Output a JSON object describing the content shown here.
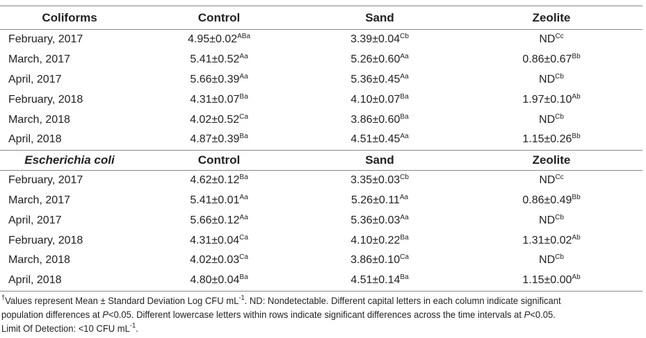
{
  "sections": [
    {
      "header": [
        "Coliforms",
        "Control",
        "Sand",
        "Zeolite"
      ],
      "rows": [
        {
          "label": "February, 2017",
          "cells": [
            {
              "value": "4.95±0.02",
              "sup": "ABa"
            },
            {
              "value": "3.39±0.04",
              "sup": "Cb"
            },
            {
              "value": "ND",
              "sup": "Cc"
            }
          ]
        },
        {
          "label": "March, 2017",
          "cells": [
            {
              "value": "5.41±0.52",
              "sup": "Aa"
            },
            {
              "value": "5.26±0.60",
              "sup": "Aa"
            },
            {
              "value": "0.86±0.67",
              "sup": "Bb"
            }
          ]
        },
        {
          "label": "April, 2017",
          "cells": [
            {
              "value": "5.66±0.39",
              "sup": "Aa"
            },
            {
              "value": "5.36±0.45",
              "sup": "Aa"
            },
            {
              "value": "ND",
              "sup": "Cb"
            }
          ]
        },
        {
          "label": "February, 2018",
          "cells": [
            {
              "value": "4.31±0.07",
              "sup": "Ba"
            },
            {
              "value": "4.10±0.07",
              "sup": "Ba"
            },
            {
              "value": "1.97±0.10",
              "sup": "Ab"
            }
          ]
        },
        {
          "label": "March, 2018",
          "cells": [
            {
              "value": "4.02±0.52",
              "sup": "Ca"
            },
            {
              "value": "3.86±0.60",
              "sup": "Ba"
            },
            {
              "value": "ND",
              "sup": "Cb"
            }
          ]
        },
        {
          "label": "April, 2018",
          "cells": [
            {
              "value": "4.87±0.39",
              "sup": "Ba"
            },
            {
              "value": "4.51±0.45",
              "sup": "Aa"
            },
            {
              "value": "1.15±0.26",
              "sup": "Bb"
            }
          ]
        }
      ]
    },
    {
      "header": [
        "Escherichia coli",
        "Control",
        "Sand",
        "Zeolite"
      ],
      "rows": [
        {
          "label": "February, 2017",
          "cells": [
            {
              "value": "4.62±0.12",
              "sup": "Ba"
            },
            {
              "value": "3.35±0.03",
              "sup": "Cb"
            },
            {
              "value": "ND",
              "sup": "Cc"
            }
          ]
        },
        {
          "label": "March, 2017",
          "cells": [
            {
              "value": "5.41±0.01",
              "sup": "Aa"
            },
            {
              "value": "5.26±0.11",
              "sup": "Aa"
            },
            {
              "value": "0.86±0.49",
              "sup": "Bb"
            }
          ]
        },
        {
          "label": "April, 2017",
          "cells": [
            {
              "value": "5.66±0.12",
              "sup": "Aa"
            },
            {
              "value": "5.36±0.03",
              "sup": "Aa"
            },
            {
              "value": "ND",
              "sup": "Cb"
            }
          ]
        },
        {
          "label": "February, 2018",
          "cells": [
            {
              "value": "4.31±0.04",
              "sup": "Ca"
            },
            {
              "value": "4.10±0.22",
              "sup": "Ba"
            },
            {
              "value": "1.31±0.02",
              "sup": "Ab"
            }
          ]
        },
        {
          "label": "March, 2018",
          "cells": [
            {
              "value": "4.02±0.03",
              "sup": "Ca"
            },
            {
              "value": "3.86±0.10",
              "sup": "Ca"
            },
            {
              "value": "ND",
              "sup": "Cb"
            }
          ]
        },
        {
          "label": "April, 2018",
          "cells": [
            {
              "value": "4.80±0.04",
              "sup": "Ba"
            },
            {
              "value": "4.51±0.14",
              "sup": "Ba"
            },
            {
              "value": "1.15±0.00",
              "sup": "Ab"
            }
          ]
        }
      ]
    }
  ],
  "footnote": [
    [
      {
        "sup": "†"
      },
      {
        "text": "Values represent Mean ± Standard Deviation Log CFU mL"
      },
      {
        "sup": "-1"
      },
      {
        "text": ". ND: Nondetectable.  Different capital letters in each column indicate significant"
      }
    ],
    [
      {
        "text": "population differences at "
      },
      {
        "italic": "P"
      },
      {
        "text": "<0.05. Different lowercase letters within rows indicate significant differences across the time intervals at "
      },
      {
        "italic": "P"
      },
      {
        "text": "<0.05."
      }
    ],
    [
      {
        "text": "Limit Of Detection: <10 CFU mL"
      },
      {
        "sup": "-1"
      },
      {
        "text": "."
      }
    ]
  ]
}
